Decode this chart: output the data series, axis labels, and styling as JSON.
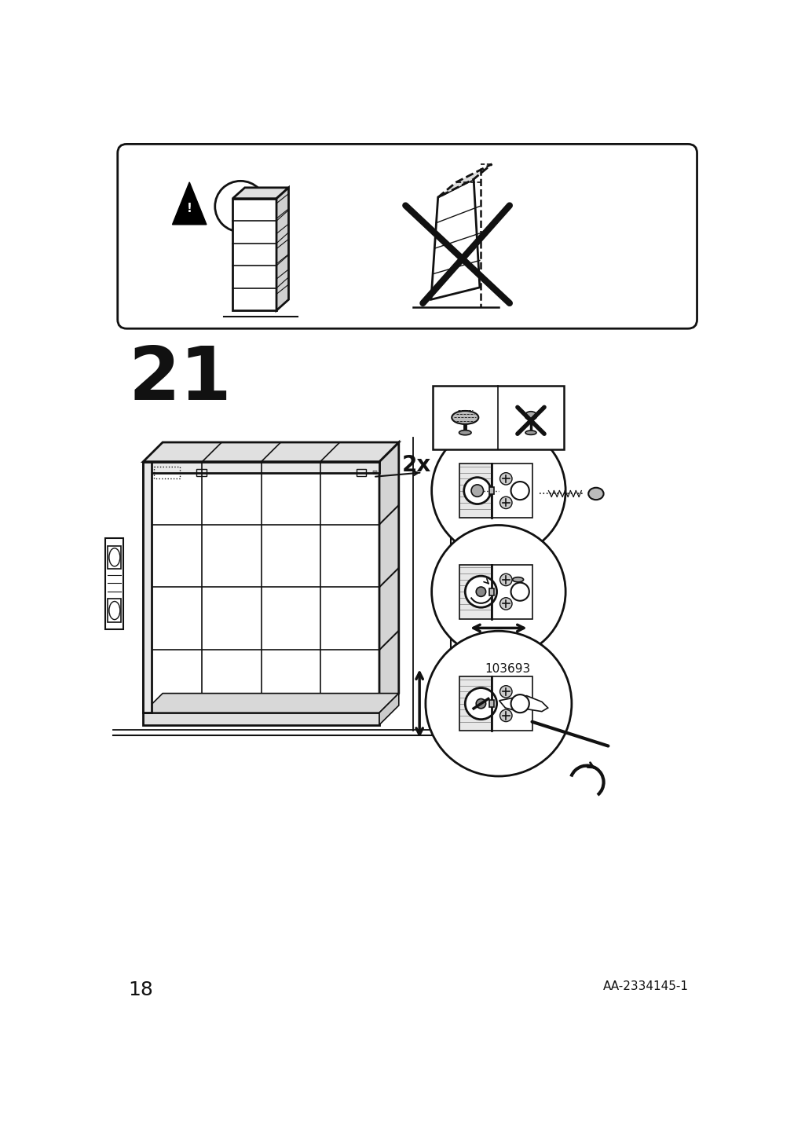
{
  "bg_color": "#ffffff",
  "page_number": "18",
  "article_number": "AA-2334145-1",
  "step_number": "21",
  "fig_width": 10.12,
  "fig_height": 14.32,
  "dpi": 100
}
